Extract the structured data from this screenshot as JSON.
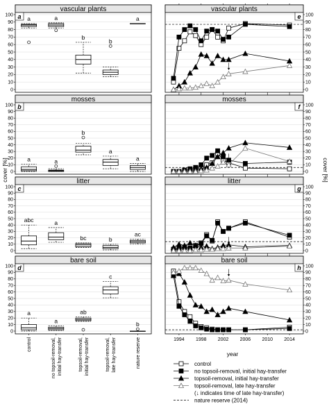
{
  "y_axis_label": "cover [%]",
  "x_axis_label": "year",
  "legend": {
    "items": [
      {
        "marker": "open-square",
        "line": "solid",
        "label": "control"
      },
      {
        "marker": "filled-square",
        "line": "solid",
        "label": "no topsoil-removal, initial hay-transfer"
      },
      {
        "marker": "filled-triangle",
        "line": "solid",
        "label": "topsoil-removal, initial hay-transfer"
      },
      {
        "marker": "open-triangle",
        "line": "solid",
        "label": "topsoil-removal, late hay-transfer"
      },
      {
        "marker": "none",
        "line": "none",
        "label": "(↓ indicates time of late hay-transfer)"
      },
      {
        "marker": "none",
        "line": "dashed",
        "label": "nature reserve (2014)"
      }
    ]
  },
  "chart_data": [
    {
      "panel": "a",
      "title": "vascular plants",
      "type": "box",
      "categories": [
        "control",
        "no topsoil-removal, initial hay-transfer",
        "topsoil-removal, initial hay-transfer",
        "topsoil-removal, late hay-transfer",
        "nature reserve"
      ],
      "ylim": [
        0,
        100
      ],
      "yticks": [
        0,
        10,
        20,
        30,
        40,
        50,
        60,
        70,
        80,
        90,
        100
      ],
      "boxes": [
        {
          "whislo": 82,
          "q1": 84,
          "med": 86,
          "q3": 87,
          "whishi": 88,
          "outliers": [
            63
          ],
          "letter": "a"
        },
        {
          "whislo": 82,
          "q1": 84,
          "med": 86,
          "q3": 88,
          "whishi": 89,
          "outliers": [
            79
          ],
          "letter": "a"
        },
        {
          "whislo": 22,
          "q1": 34,
          "med": 40,
          "q3": 46,
          "whishi": 63,
          "outliers": [],
          "letter": "b"
        },
        {
          "whislo": 17,
          "q1": 20,
          "med": 23,
          "q3": 26,
          "whishi": 30,
          "outliers": [
            58
          ],
          "letter": "b"
        },
        {
          "whislo": 88,
          "q1": 88,
          "med": 88,
          "q3": 88,
          "whishi": 88,
          "outliers": [],
          "letter": "a"
        }
      ]
    },
    {
      "panel": "b",
      "title": "mosses",
      "type": "box",
      "categories": [
        "control",
        "no topsoil-removal, initial hay-transfer",
        "topsoil-removal, initial hay-transfer",
        "topsoil-removal, late hay-transfer",
        "nature reserve"
      ],
      "ylim": [
        0,
        100
      ],
      "yticks": [
        0,
        10,
        20,
        30,
        40,
        50,
        60,
        70,
        80,
        90,
        100
      ],
      "boxes": [
        {
          "whislo": 0,
          "q1": 1,
          "med": 3,
          "q3": 7,
          "whishi": 11,
          "outliers": [],
          "letter": "a"
        },
        {
          "whislo": 0,
          "q1": 0,
          "med": 1,
          "q3": 2,
          "whishi": 4,
          "outliers": [
            8
          ],
          "letter": "a"
        },
        {
          "whislo": 25,
          "q1": 29,
          "med": 32,
          "q3": 38,
          "whishi": 42,
          "outliers": [
            51
          ],
          "letter": "b"
        },
        {
          "whislo": 4,
          "q1": 9,
          "med": 14,
          "q3": 18,
          "whishi": 23,
          "outliers": [],
          "letter": "a"
        },
        {
          "whislo": 0,
          "q1": 3,
          "med": 6,
          "q3": 9,
          "whishi": 12,
          "outliers": [],
          "letter": "a"
        }
      ]
    },
    {
      "panel": "c",
      "title": "litter",
      "type": "box",
      "categories": [
        "control",
        "no topsoil-removal, initial hay-transfer",
        "topsoil-removal, initial hay-transfer",
        "topsoil-removal, late hay-transfer",
        "nature reserve"
      ],
      "ylim": [
        0,
        100
      ],
      "yticks": [
        0,
        10,
        20,
        30,
        40,
        50,
        60,
        70,
        80,
        90,
        100
      ],
      "boxes": [
        {
          "whislo": 3,
          "q1": 9,
          "med": 15,
          "q3": 23,
          "whishi": 40,
          "outliers": [],
          "letter": "abc"
        },
        {
          "whislo": 13,
          "q1": 17,
          "med": 21,
          "q3": 28,
          "whishi": 36,
          "outliers": [],
          "letter": "a"
        },
        {
          "whislo": 5,
          "q1": 6,
          "med": 9,
          "q3": 11,
          "whishi": 12,
          "outliers": [],
          "letter": "bc"
        },
        {
          "whislo": 1,
          "q1": 3,
          "med": 5,
          "q3": 8,
          "whishi": 10,
          "outliers": [],
          "letter": "b"
        },
        {
          "whislo": 10,
          "q1": 12,
          "med": 14,
          "q3": 16,
          "whishi": 18,
          "outliers": [],
          "letter": "ac"
        }
      ]
    },
    {
      "panel": "d",
      "title": "bare soil",
      "type": "box",
      "categories": [
        "control",
        "no topsoil-removal, initial hay-transfer",
        "topsoil-removal, initial hay-transfer",
        "topsoil-removal, late hay-transfer",
        "nature reserve"
      ],
      "ylim": [
        0,
        100
      ],
      "yticks": [
        0,
        10,
        20,
        30,
        40,
        50,
        60,
        70,
        80,
        90,
        100
      ],
      "boxes": [
        {
          "whislo": 0,
          "q1": 2,
          "med": 5,
          "q3": 10,
          "whishi": 20,
          "outliers": [],
          "letter": "a"
        },
        {
          "whislo": 1,
          "q1": 2,
          "med": 4,
          "q3": 6,
          "whishi": 8,
          "outliers": [],
          "letter": "a"
        },
        {
          "whislo": 15,
          "q1": 16,
          "med": 18,
          "q3": 20,
          "whishi": 22,
          "outliers": [
            2
          ],
          "letter": "ab"
        },
        {
          "whislo": 51,
          "q1": 57,
          "med": 63,
          "q3": 68,
          "whishi": 76,
          "outliers": [],
          "letter": "c"
        },
        {
          "whislo": 0,
          "q1": 0,
          "med": 0,
          "q3": 0,
          "whishi": 0,
          "outliers": [
            3
          ],
          "letter": "b"
        }
      ]
    },
    {
      "panel": "e",
      "title": "vascular plants",
      "type": "line",
      "xlim": [
        1992,
        2016
      ],
      "xticks": [
        1994,
        1998,
        2002,
        2006,
        2010,
        2014
      ],
      "ylim": [
        0,
        100
      ],
      "yticks": [
        0,
        10,
        20,
        30,
        40,
        50,
        60,
        70,
        80,
        90,
        100
      ],
      "reference": 87,
      "arrow_year": 2003,
      "series": [
        {
          "name": "control",
          "x": [
            1993,
            1994,
            1995,
            1996,
            1997,
            1998,
            1999,
            2000,
            2001,
            2002,
            2003,
            2006,
            2014
          ],
          "y": [
            10,
            55,
            65,
            77,
            72,
            60,
            70,
            80,
            70,
            65,
            82,
            88,
            86
          ]
        },
        {
          "name": "no topsoil-removal, initial hay-transfer",
          "x": [
            1993,
            1994,
            1995,
            1996,
            1997,
            1998,
            1999,
            2000,
            2001,
            2002,
            2003,
            2006,
            2014
          ],
          "y": [
            15,
            70,
            80,
            85,
            80,
            65,
            78,
            80,
            78,
            67,
            70,
            87,
            84
          ]
        },
        {
          "name": "topsoil-removal, initial hay-transfer",
          "x": [
            1993,
            1994,
            1995,
            1996,
            1997,
            1998,
            1999,
            2000,
            2001,
            2002,
            2003,
            2006,
            2014
          ],
          "y": [
            0,
            5,
            10,
            22,
            30,
            47,
            45,
            35,
            45,
            40,
            40,
            48,
            38
          ]
        },
        {
          "name": "topsoil-removal, late hay-transfer",
          "x": [
            1993,
            1994,
            1995,
            1996,
            1997,
            1998,
            1999,
            2000,
            2001,
            2002,
            2003,
            2006,
            2014
          ],
          "y": [
            0,
            1,
            2,
            2,
            3,
            5,
            8,
            5,
            10,
            17,
            21,
            24,
            32
          ]
        }
      ]
    },
    {
      "panel": "f",
      "title": "mosses",
      "type": "line",
      "xlim": [
        1992,
        2016
      ],
      "xticks": [
        1994,
        1998,
        2002,
        2006,
        2010,
        2014
      ],
      "ylim": [
        0,
        100
      ],
      "yticks": [
        0,
        10,
        20,
        30,
        40,
        50,
        60,
        70,
        80,
        90,
        100
      ],
      "reference": 6,
      "arrow_year": 2003,
      "series": [
        {
          "name": "control",
          "x": [
            1993,
            1994,
            1995,
            1996,
            1997,
            1998,
            1999,
            2000,
            2001,
            2002,
            2003,
            2006,
            2014
          ],
          "y": [
            0,
            0,
            0,
            2,
            4,
            6,
            10,
            13,
            27,
            17,
            13,
            5,
            4
          ]
        },
        {
          "name": "no topsoil-removal, initial hay-transfer",
          "x": [
            1993,
            1994,
            1995,
            1996,
            1997,
            1998,
            1999,
            2000,
            2001,
            2002,
            2003,
            2006,
            2014
          ],
          "y": [
            0,
            0,
            2,
            4,
            6,
            10,
            20,
            24,
            31,
            22,
            17,
            12,
            14
          ]
        },
        {
          "name": "topsoil-removal, initial hay-transfer",
          "x": [
            1993,
            1994,
            1995,
            1996,
            1997,
            1998,
            1999,
            2000,
            2001,
            2002,
            2003,
            2006,
            2014
          ],
          "y": [
            0,
            0,
            0,
            0,
            2,
            4,
            6,
            12,
            22,
            28,
            35,
            43,
            36
          ]
        },
        {
          "name": "topsoil-removal, late hay-transfer",
          "x": [
            1993,
            1994,
            1995,
            1996,
            1997,
            1998,
            1999,
            2000,
            2001,
            2002,
            2003,
            2006,
            2014
          ],
          "y": [
            0,
            0,
            0,
            0,
            0,
            1,
            2,
            5,
            8,
            14,
            10,
            35,
            15
          ]
        }
      ]
    },
    {
      "panel": "g",
      "title": "litter",
      "type": "line",
      "xlim": [
        1992,
        2016
      ],
      "xticks": [
        1994,
        1998,
        2002,
        2006,
        2010,
        2014
      ],
      "ylim": [
        0,
        100
      ],
      "yticks": [
        0,
        10,
        20,
        30,
        40,
        50,
        60,
        70,
        80,
        90,
        100
      ],
      "reference": 14,
      "arrow_year": 2003,
      "series": [
        {
          "name": "control",
          "x": [
            1993,
            1994,
            1995,
            1996,
            1997,
            1998,
            1999,
            2000,
            2001,
            2002,
            2003,
            2006,
            2014
          ],
          "y": [
            2,
            2,
            5,
            3,
            8,
            12,
            25,
            15,
            45,
            30,
            35,
            45,
            21
          ]
        },
        {
          "name": "no topsoil-removal, initial hay-transfer",
          "x": [
            1993,
            1994,
            1995,
            1996,
            1997,
            1998,
            1999,
            2000,
            2001,
            2002,
            2003,
            2006,
            2014
          ],
          "y": [
            2,
            4,
            5,
            4,
            7,
            11,
            23,
            16,
            43,
            30,
            35,
            43,
            24
          ]
        },
        {
          "name": "topsoil-removal, initial hay-transfer",
          "x": [
            1993,
            1994,
            1995,
            1996,
            1997,
            1998,
            1999,
            2000,
            2001,
            2002,
            2003,
            2006,
            2014
          ],
          "y": [
            5,
            10,
            8,
            12,
            8,
            5,
            7,
            3,
            5,
            8,
            9,
            6,
            8
          ]
        },
        {
          "name": "topsoil-removal, late hay-transfer",
          "x": [
            1993,
            1994,
            1995,
            1996,
            1997,
            1998,
            1999,
            2000,
            2001,
            2002,
            2003,
            2006,
            2014
          ],
          "y": [
            0,
            0,
            0,
            0,
            1,
            1,
            2,
            2,
            3,
            3,
            4,
            4,
            7
          ]
        }
      ]
    },
    {
      "panel": "h",
      "title": "bare soil",
      "type": "line",
      "xlim": [
        1992,
        2016
      ],
      "xticks": [
        1994,
        1998,
        2002,
        2006,
        2010,
        2014
      ],
      "ylim": [
        0,
        100
      ],
      "yticks": [
        0,
        10,
        20,
        30,
        40,
        50,
        60,
        70,
        80,
        90,
        100
      ],
      "reference": 2,
      "arrow_year": 2003,
      "series": [
        {
          "name": "control",
          "x": [
            1993,
            1994,
            1995,
            1996,
            1997,
            1998,
            1999,
            2000,
            2001,
            2002,
            2003,
            2006,
            2014
          ],
          "y": [
            92,
            45,
            30,
            22,
            12,
            7,
            5,
            3,
            2,
            2,
            2,
            2,
            6
          ]
        },
        {
          "name": "no topsoil-removal, initial hay-transfer",
          "x": [
            1993,
            1994,
            1995,
            1996,
            1997,
            1998,
            1999,
            2000,
            2001,
            2002,
            2003,
            2006,
            2014
          ],
          "y": [
            85,
            38,
            25,
            15,
            8,
            5,
            3,
            2,
            2,
            2,
            2,
            2,
            4
          ]
        },
        {
          "name": "topsoil-removal, initial hay-transfer",
          "x": [
            1993,
            1994,
            1995,
            1996,
            1997,
            1998,
            1999,
            2000,
            2001,
            2002,
            2003,
            2006,
            2014
          ],
          "y": [
            85,
            88,
            75,
            55,
            40,
            38,
            30,
            33,
            25,
            30,
            35,
            30,
            17
          ]
        },
        {
          "name": "topsoil-removal, late hay-transfer",
          "x": [
            1993,
            1994,
            1995,
            1996,
            1997,
            1998,
            1999,
            2000,
            2001,
            2002,
            2003,
            2006,
            2014
          ],
          "y": [
            90,
            92,
            97,
            97,
            97,
            93,
            88,
            78,
            82,
            77,
            78,
            72,
            63
          ]
        }
      ]
    }
  ]
}
